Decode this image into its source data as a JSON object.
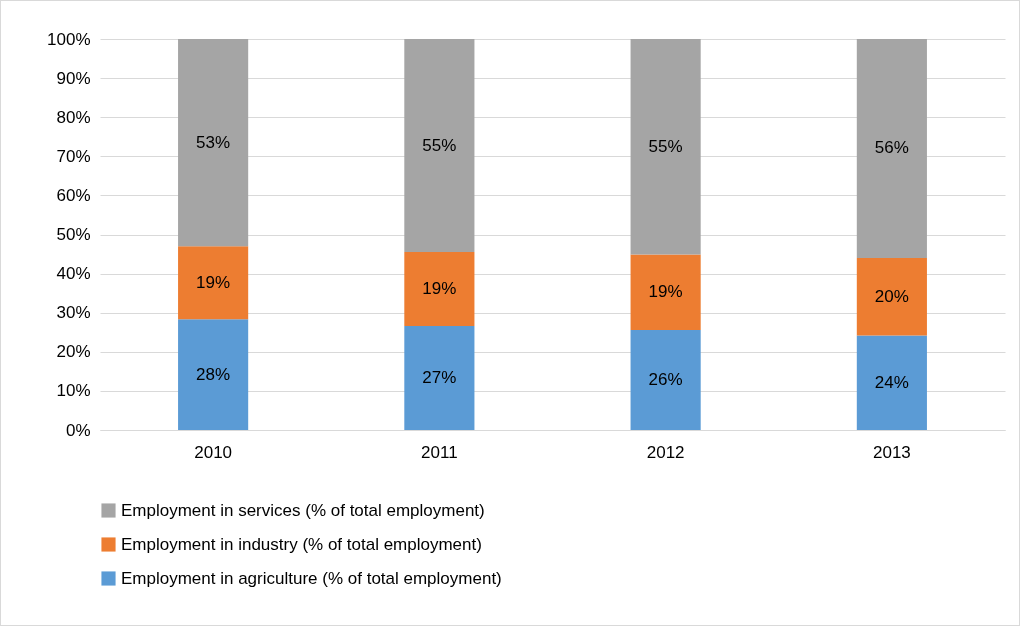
{
  "chart_data": {
    "type": "bar",
    "stacked": true,
    "categories": [
      "2010",
      "2011",
      "2012",
      "2013"
    ],
    "series": [
      {
        "name": "Employment in agriculture (% of total employment)",
        "color": "#5b9bd5",
        "values": [
          28.3,
          26.6,
          25.6,
          24.2
        ],
        "value_labels": [
          "28%",
          "27%",
          "26%",
          "24%"
        ]
      },
      {
        "name": "Employment in industry (% of total employment)",
        "color": "#ed7d31",
        "values": [
          18.7,
          18.9,
          19.3,
          19.8
        ],
        "value_labels": [
          "19%",
          "19%",
          "19%",
          "20%"
        ]
      },
      {
        "name": "Employment in services (% of total employment)",
        "color": "#a5a5a5",
        "values": [
          53.0,
          54.5,
          55.1,
          56.0
        ],
        "value_labels": [
          "53%",
          "55%",
          "55%",
          "56%"
        ]
      }
    ],
    "ylim": [
      0,
      100
    ],
    "yticks": [
      {
        "value": 0,
        "label": "0%"
      },
      {
        "value": 10,
        "label": "10%"
      },
      {
        "value": 20,
        "label": "20%"
      },
      {
        "value": 30,
        "label": "30%"
      },
      {
        "value": 40,
        "label": "40%"
      },
      {
        "value": 50,
        "label": "50%"
      },
      {
        "value": 60,
        "label": "60%"
      },
      {
        "value": 70,
        "label": "70%"
      },
      {
        "value": 80,
        "label": "80%"
      },
      {
        "value": 90,
        "label": "90%"
      },
      {
        "value": 100,
        "label": "100%"
      }
    ],
    "grid": "y",
    "legend": "bottom"
  }
}
